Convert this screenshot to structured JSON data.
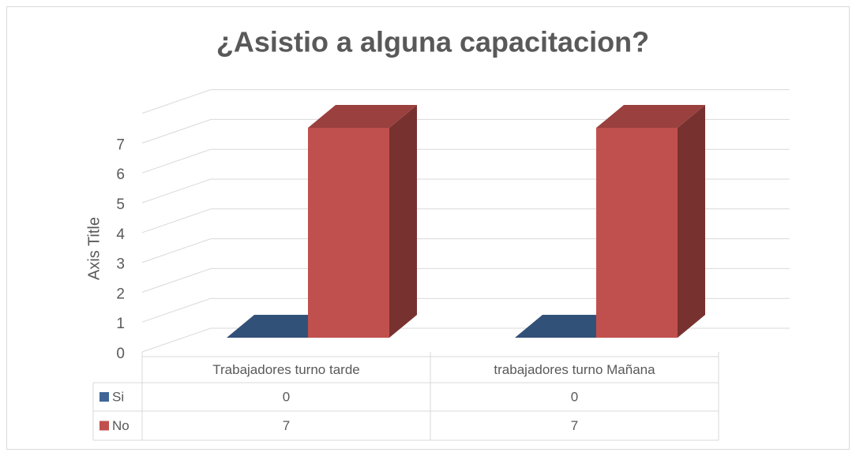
{
  "chart_data": {
    "type": "bar3d",
    "title": "¿Asistio a alguna capacitacion?",
    "y_axis_label": "Axis Title",
    "categories": [
      "Trabajadores turno tarde",
      "trabajadores turno Mañana"
    ],
    "series": [
      {
        "name": "Si",
        "color": "#3f6597",
        "values": [
          0,
          0
        ]
      },
      {
        "name": "No",
        "color": "#c0504d",
        "values": [
          7,
          7
        ]
      }
    ],
    "ylim": [
      0,
      8
    ],
    "yticks": [
      0,
      1,
      2,
      3,
      4,
      5,
      6,
      7
    ],
    "grid": true,
    "data_table": true
  }
}
